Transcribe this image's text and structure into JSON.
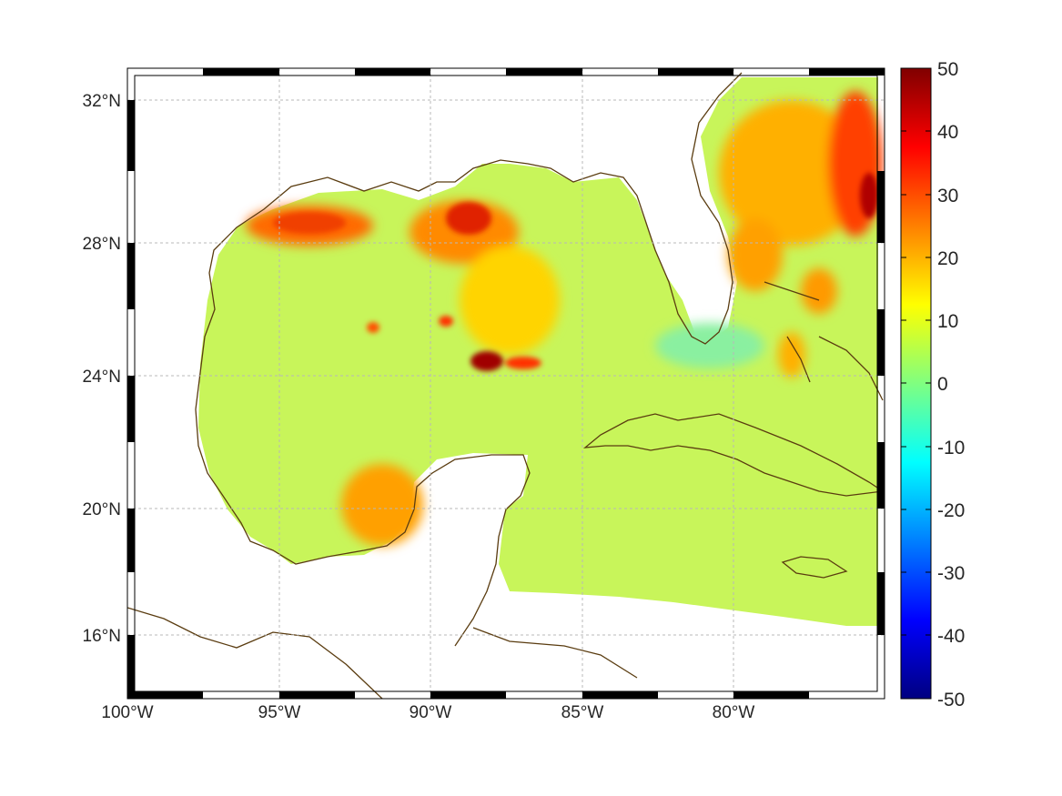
{
  "map": {
    "lon_labels": [
      "100°W",
      "95°W",
      "90°W",
      "85°W",
      "80°W"
    ],
    "lat_labels": [
      "32°N",
      "28°N",
      "24°N",
      "20°N",
      "16°N"
    ]
  },
  "colorbar": {
    "ticks": [
      "50",
      "40",
      "30",
      "20",
      "10",
      "0",
      "-10",
      "-20",
      "-30",
      "-40",
      "-50"
    ],
    "range": [
      -50,
      50
    ],
    "colormap": "jet"
  },
  "colors": {
    "coastline": "#5a3c10",
    "background_field": "#c8f55a",
    "grid": "#b8b8b8"
  }
}
